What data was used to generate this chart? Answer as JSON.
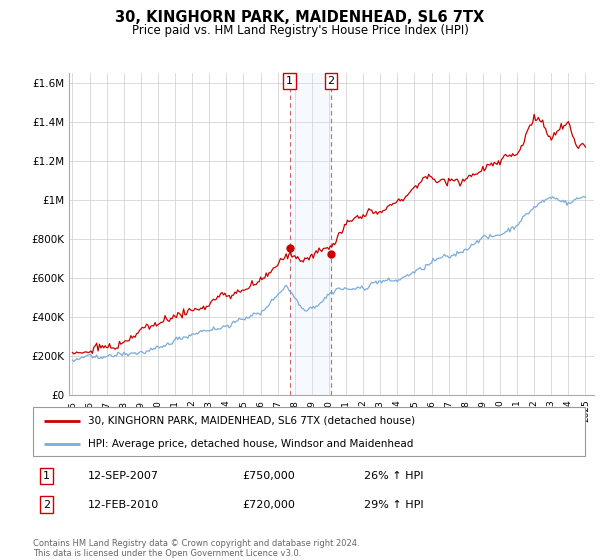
{
  "title": "30, KINGHORN PARK, MAIDENHEAD, SL6 7TX",
  "subtitle": "Price paid vs. HM Land Registry's House Price Index (HPI)",
  "sale1_date": "12-SEP-2007",
  "sale1_price": 750000,
  "sale1_hpi": "26%",
  "sale2_date": "12-FEB-2010",
  "sale2_price": 720000,
  "sale2_hpi": "29%",
  "legend_property": "30, KINGHORN PARK, MAIDENHEAD, SL6 7TX (detached house)",
  "legend_hpi": "HPI: Average price, detached house, Windsor and Maidenhead",
  "footer": "Contains HM Land Registry data © Crown copyright and database right 2024.\nThis data is licensed under the Open Government Licence v3.0.",
  "property_color": "#cc0000",
  "hpi_color": "#7AADDB",
  "shade_color": "#ddeeff",
  "vline_color": "#cc6666",
  "ylim": [
    0,
    1650000
  ],
  "yticks": [
    0,
    200000,
    400000,
    600000,
    800000,
    1000000,
    1200000,
    1400000,
    1600000
  ],
  "ytick_labels": [
    "£0",
    "£200K",
    "£400K",
    "£600K",
    "£800K",
    "£1M",
    "£1.2M",
    "£1.4M",
    "£1.6M"
  ],
  "sale1_year": 2007.71,
  "sale2_year": 2010.12
}
